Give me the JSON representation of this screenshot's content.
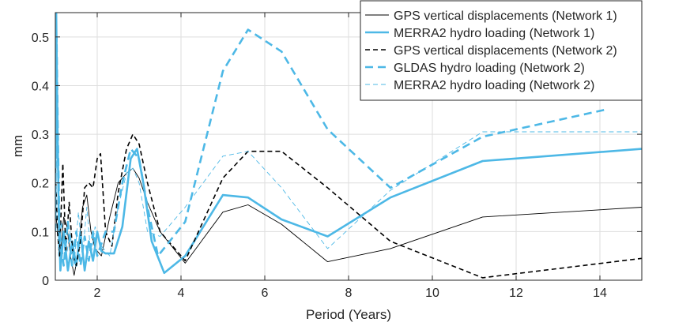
{
  "chart_data": {
    "type": "line",
    "title": "",
    "xlabel": "Period (Years)",
    "ylabel": "mm",
    "xlim": [
      1,
      15
    ],
    "ylim": [
      0,
      0.55
    ],
    "xticks": [
      2,
      4,
      6,
      8,
      10,
      12,
      14
    ],
    "yticks": [
      0,
      0.1,
      0.2,
      0.3,
      0.4,
      0.5
    ],
    "xtick_labels": [
      "2",
      "4",
      "6",
      "8",
      "10",
      "12",
      "14"
    ],
    "ytick_labels": [
      "0",
      "0.1",
      "0.2",
      "0.3",
      "0.4",
      "0.5"
    ],
    "grid": true,
    "legend_position": "top-right",
    "series": [
      {
        "name": "GPS vertical displacements (Network 1)",
        "color": "#000000",
        "style": "solid",
        "weight": "thin",
        "x": [
          1.0,
          1.06,
          1.12,
          1.2,
          1.28,
          1.36,
          1.45,
          1.55,
          1.65,
          1.75,
          1.85,
          1.95,
          2.1,
          2.3,
          2.5,
          2.7,
          2.85,
          3.0,
          3.2,
          3.5,
          4.1,
          5.0,
          5.6,
          6.4,
          7.5,
          9.0,
          11.2,
          15.0
        ],
        "y": [
          0.14,
          0.1,
          0.05,
          0.13,
          0.11,
          0.05,
          0.01,
          0.06,
          0.15,
          0.175,
          0.1,
          0.065,
          0.05,
          0.13,
          0.2,
          0.22,
          0.23,
          0.21,
          0.16,
          0.1,
          0.035,
          0.14,
          0.155,
          0.115,
          0.038,
          0.065,
          0.13,
          0.15
        ]
      },
      {
        "name": "MERRA2 hydro loading (Network 1)",
        "color": "#4db8e6",
        "style": "solid",
        "weight": "thick",
        "x": [
          1.0,
          1.02,
          1.05,
          1.08,
          1.12,
          1.2,
          1.3,
          1.4,
          1.5,
          1.6,
          1.7,
          1.8,
          1.9,
          2.0,
          2.1,
          2.2,
          2.4,
          2.6,
          2.8,
          2.95,
          3.1,
          3.3,
          3.6,
          4.1,
          5.0,
          5.6,
          6.4,
          7.5,
          9.0,
          11.2,
          15.0
        ],
        "y": [
          0.14,
          0.55,
          0.32,
          0.15,
          0.02,
          0.1,
          0.02,
          0.08,
          0.03,
          0.1,
          0.02,
          0.08,
          0.04,
          0.1,
          0.06,
          0.055,
          0.055,
          0.11,
          0.25,
          0.27,
          0.2,
          0.08,
          0.015,
          0.05,
          0.175,
          0.17,
          0.125,
          0.09,
          0.17,
          0.245,
          0.27
        ]
      },
      {
        "name": "GPS vertical displacements (Network 2)",
        "color": "#000000",
        "style": "dashed",
        "weight": "medium",
        "x": [
          1.0,
          1.05,
          1.1,
          1.18,
          1.25,
          1.33,
          1.42,
          1.5,
          1.6,
          1.7,
          1.8,
          1.9,
          2.0,
          2.08,
          2.2,
          2.35,
          2.5,
          2.7,
          2.85,
          3.0,
          3.2,
          3.5,
          4.1,
          5.0,
          5.6,
          6.4,
          7.5,
          9.0,
          11.2,
          15.0
        ],
        "y": [
          0.23,
          0.1,
          0.05,
          0.24,
          0.06,
          0.16,
          0.05,
          0.03,
          0.08,
          0.19,
          0.2,
          0.19,
          0.25,
          0.26,
          0.1,
          0.07,
          0.18,
          0.27,
          0.3,
          0.28,
          0.2,
          0.1,
          0.04,
          0.21,
          0.265,
          0.265,
          0.19,
          0.08,
          0.005,
          0.045
        ]
      },
      {
        "name": "GLDAS hydro loading (Network 2)",
        "color": "#4db8e6",
        "style": "dashed",
        "weight": "thick",
        "x": [
          1.0,
          1.03,
          1.06,
          1.1,
          1.2,
          1.3,
          1.4,
          1.5,
          1.6,
          1.7,
          1.8,
          1.9,
          2.0,
          2.2,
          2.4,
          2.6,
          2.8,
          3.0,
          3.2,
          3.45,
          4.1,
          5.0,
          5.6,
          6.4,
          7.5,
          9.0,
          11.2,
          14.1
        ],
        "y": [
          0.1,
          0.5,
          0.3,
          0.1,
          0.03,
          0.12,
          0.03,
          0.1,
          0.03,
          0.09,
          0.04,
          0.1,
          0.05,
          0.1,
          0.1,
          0.2,
          0.27,
          0.25,
          0.15,
          0.05,
          0.12,
          0.43,
          0.515,
          0.47,
          0.31,
          0.19,
          0.295,
          0.35
        ]
      },
      {
        "name": "MERRA2 hydro loading (Network 2)",
        "color": "#4db8e6",
        "style": "dashed",
        "weight": "thin",
        "x": [
          1.0,
          1.04,
          1.08,
          1.15,
          1.25,
          1.35,
          1.45,
          1.55,
          1.65,
          1.75,
          1.85,
          1.95,
          2.1,
          2.3,
          2.5,
          2.7,
          2.85,
          3.0,
          3.2,
          3.5,
          4.1,
          5.0,
          5.6,
          6.4,
          7.5,
          9.0,
          11.2,
          15.0
        ],
        "y": [
          0.12,
          0.3,
          0.05,
          0.12,
          0.04,
          0.1,
          0.03,
          0.14,
          0.05,
          0.15,
          0.05,
          0.11,
          0.07,
          0.05,
          0.15,
          0.22,
          0.23,
          0.2,
          0.1,
          0.09,
          0.15,
          0.255,
          0.265,
          0.19,
          0.065,
          0.185,
          0.305,
          0.305
        ]
      }
    ]
  }
}
